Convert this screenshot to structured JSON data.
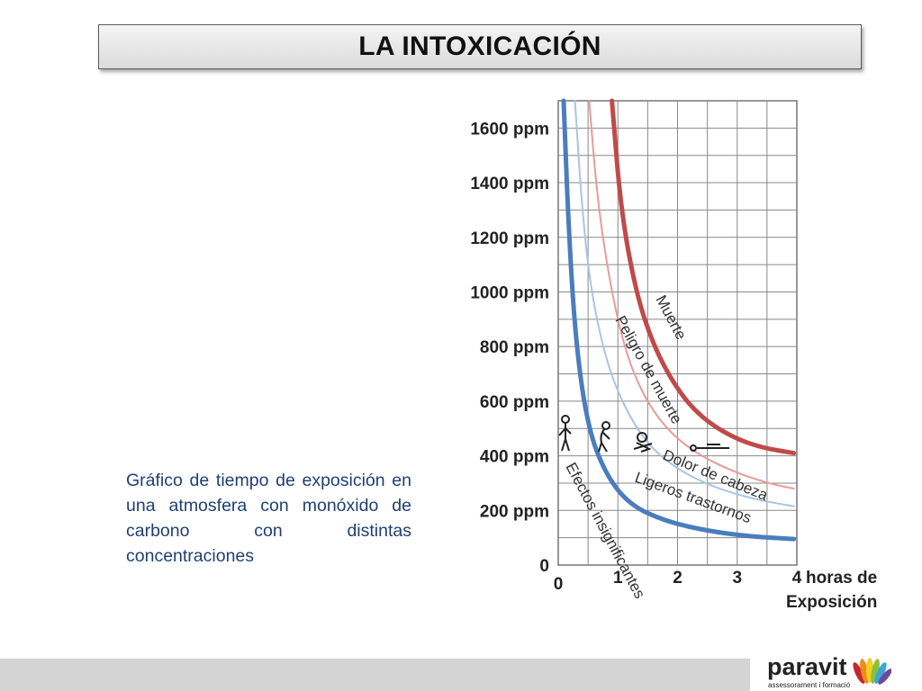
{
  "slide": {
    "title": "LA INTOXICACIÓN",
    "caption": "Gráfico de tiempo de exposición en una atmosfera con monóxido de carbono con distintas concentraciones"
  },
  "logo": {
    "word": "paravit",
    "tagline": "assessorament i formació"
  },
  "chart_data": {
    "type": "line",
    "title": "",
    "xlabel": "horas de Exposición",
    "ylabel": "",
    "xlim": [
      0,
      4
    ],
    "ylim": [
      0,
      1700
    ],
    "x_ticks": [
      "0",
      "1",
      "2",
      "3",
      "4"
    ],
    "x_tick_values": [
      0,
      1,
      2,
      3,
      4
    ],
    "y_ticks": [
      "0",
      "200 ppm",
      "400 ppm",
      "600 ppm",
      "800 ppm",
      "1000 ppm",
      "1200 ppm",
      "1400 ppm",
      "1600 ppm"
    ],
    "y_tick_values": [
      0,
      200,
      400,
      600,
      800,
      1000,
      1200,
      1400,
      1600
    ],
    "grid": true,
    "series": [
      {
        "name": "Efectos insignificantes",
        "color": "#4a7dbd",
        "x": [
          0.09,
          0.18,
          0.3,
          0.5,
          0.8,
          1.2,
          1.8,
          2.5,
          3.2,
          3.95
        ],
        "y": [
          1700,
          1200,
          800,
          500,
          330,
          220,
          160,
          125,
          105,
          95
        ]
      },
      {
        "name": "Ligeros trastornos",
        "color": "#a9c4e4",
        "x": [
          0.28,
          0.4,
          0.55,
          0.8,
          1.1,
          1.5,
          2.0,
          2.6,
          3.3,
          3.95
        ],
        "y": [
          1700,
          1300,
          1000,
          750,
          580,
          440,
          350,
          285,
          240,
          215
        ]
      },
      {
        "name": "Dolor de cabeza",
        "color": "#e89b9b",
        "x": [
          0.52,
          0.65,
          0.85,
          1.1,
          1.4,
          1.8,
          2.3,
          2.9,
          3.5,
          3.95
        ],
        "y": [
          1700,
          1350,
          1050,
          800,
          630,
          500,
          410,
          345,
          300,
          280
        ]
      },
      {
        "name": "Muerte",
        "color": "#c04a4a",
        "x": [
          0.9,
          1.05,
          1.3,
          1.6,
          2.0,
          2.4,
          2.9,
          3.4,
          3.95
        ],
        "y": [
          1700,
          1300,
          1000,
          800,
          640,
          540,
          470,
          430,
          410
        ]
      }
    ],
    "annotations": [
      "Muerte",
      "Peligro de muerte",
      "Dolor de cabeza",
      "Ligeros trastornos",
      "Efectos insignificantes"
    ]
  }
}
